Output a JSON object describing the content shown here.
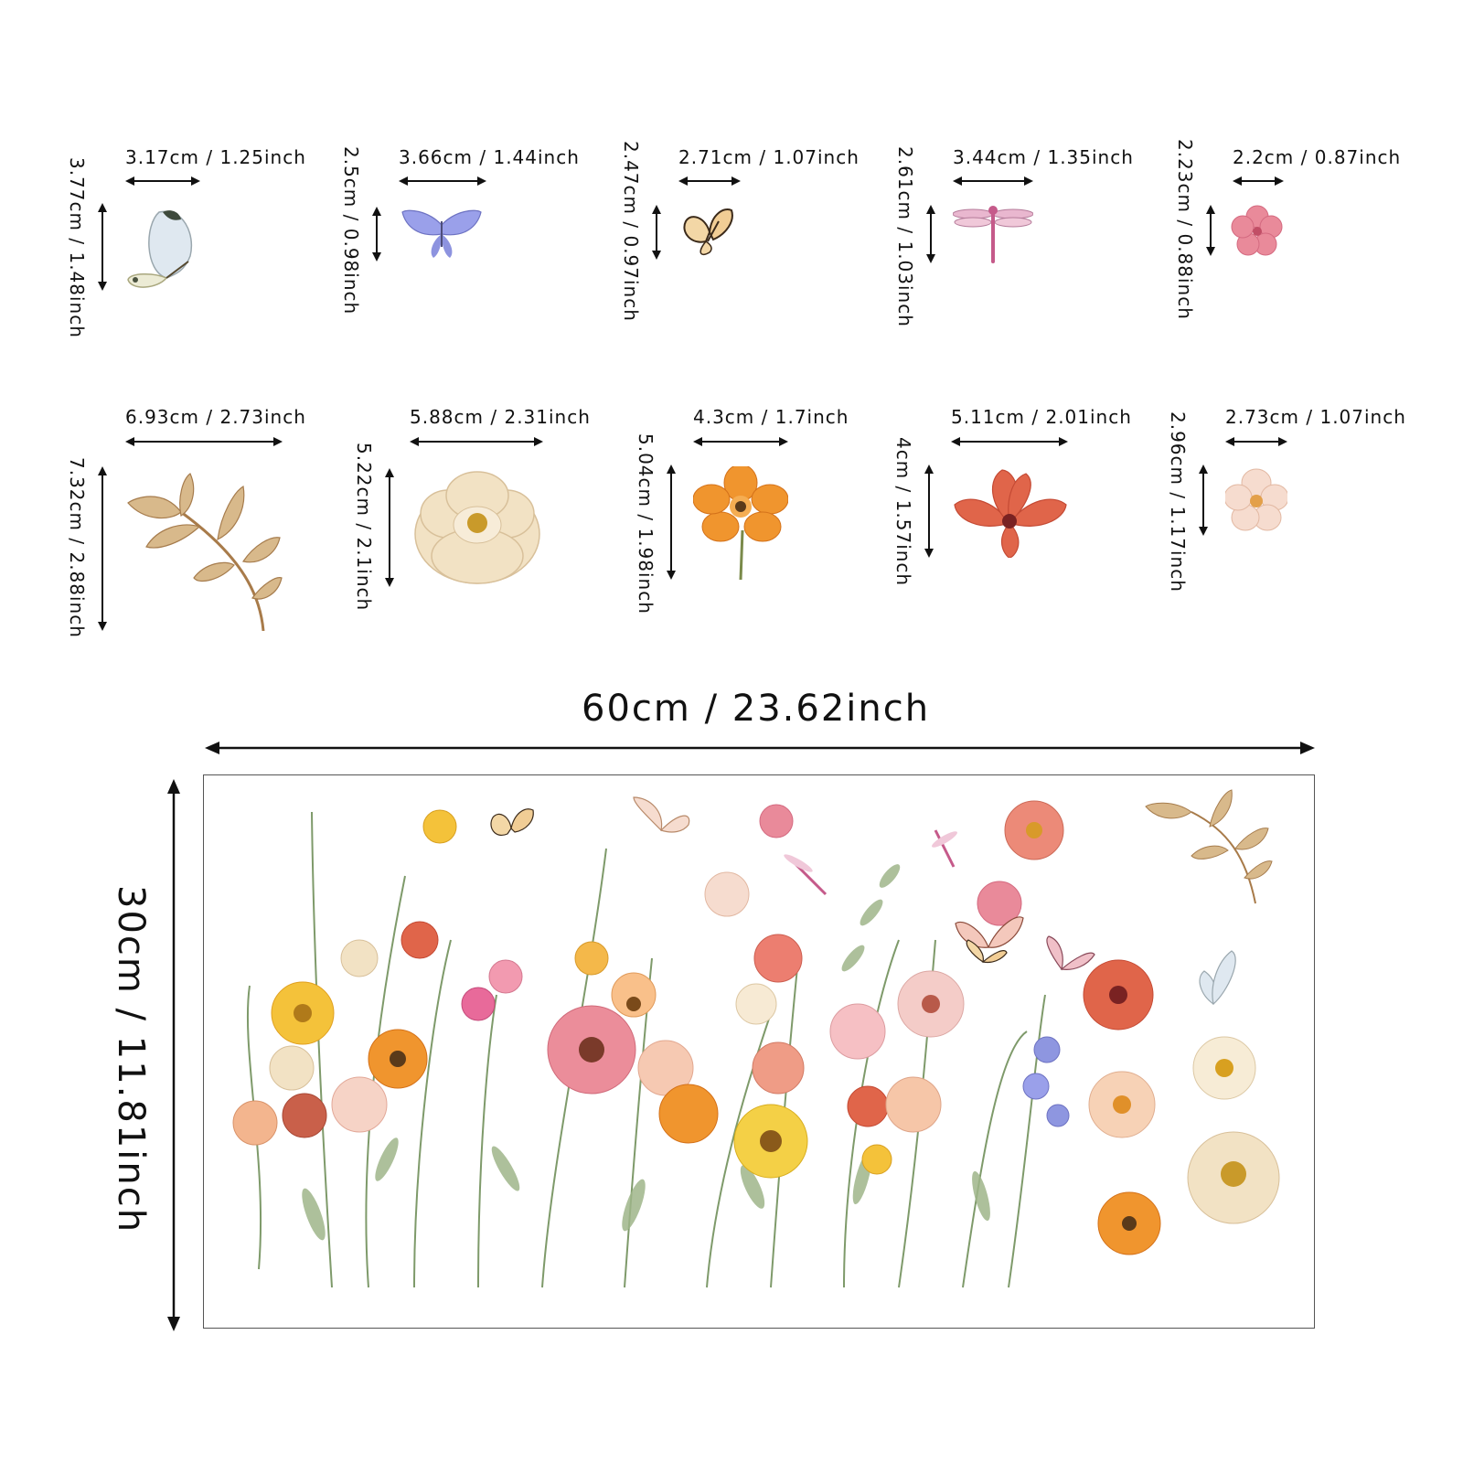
{
  "stickers": [
    {
      "name": "butterfly-white",
      "width": "3.17cm / 1.25inch",
      "height": "3.77cm / 1.48inch"
    },
    {
      "name": "butterfly-blue",
      "width": "3.66cm / 1.44inch",
      "height": "2.5cm / 0.98inch"
    },
    {
      "name": "butterfly-tan",
      "width": "2.71cm / 1.07inch",
      "height": "2.47cm / 0.97inch"
    },
    {
      "name": "dragonfly-pink",
      "width": "3.44cm / 1.35inch",
      "height": "2.61cm / 1.03inch"
    },
    {
      "name": "flower-pink-small",
      "width": "2.2cm / 0.87inch",
      "height": "2.23cm / 0.88inch"
    },
    {
      "name": "leaf-branch",
      "width": "6.93cm / 2.73inch",
      "height": "7.32cm / 2.88inch"
    },
    {
      "name": "peony-cream",
      "width": "5.88cm / 2.31inch",
      "height": "5.22cm / 2.1inch"
    },
    {
      "name": "flower-orange",
      "width": "4.3cm / 1.7inch",
      "height": "5.04cm / 1.98inch"
    },
    {
      "name": "poppy-red",
      "width": "5.11cm / 2.01inch",
      "height": "4cm / 1.57inch"
    },
    {
      "name": "flower-blush",
      "width": "2.73cm / 1.07inch",
      "height": "2.96cm / 1.17inch"
    }
  ],
  "overall": {
    "width": "60cm / 23.62inch",
    "height": "30cm / 11.81inch"
  },
  "colors": {
    "text": "#111111",
    "frame": "#555555",
    "leaf": "#c8a06a",
    "pink": "#e98a9a",
    "orange": "#f0952e",
    "red": "#e0654a",
    "cream": "#f2e2c4",
    "blue": "#8e96e0",
    "green": "#7e9a6a"
  }
}
